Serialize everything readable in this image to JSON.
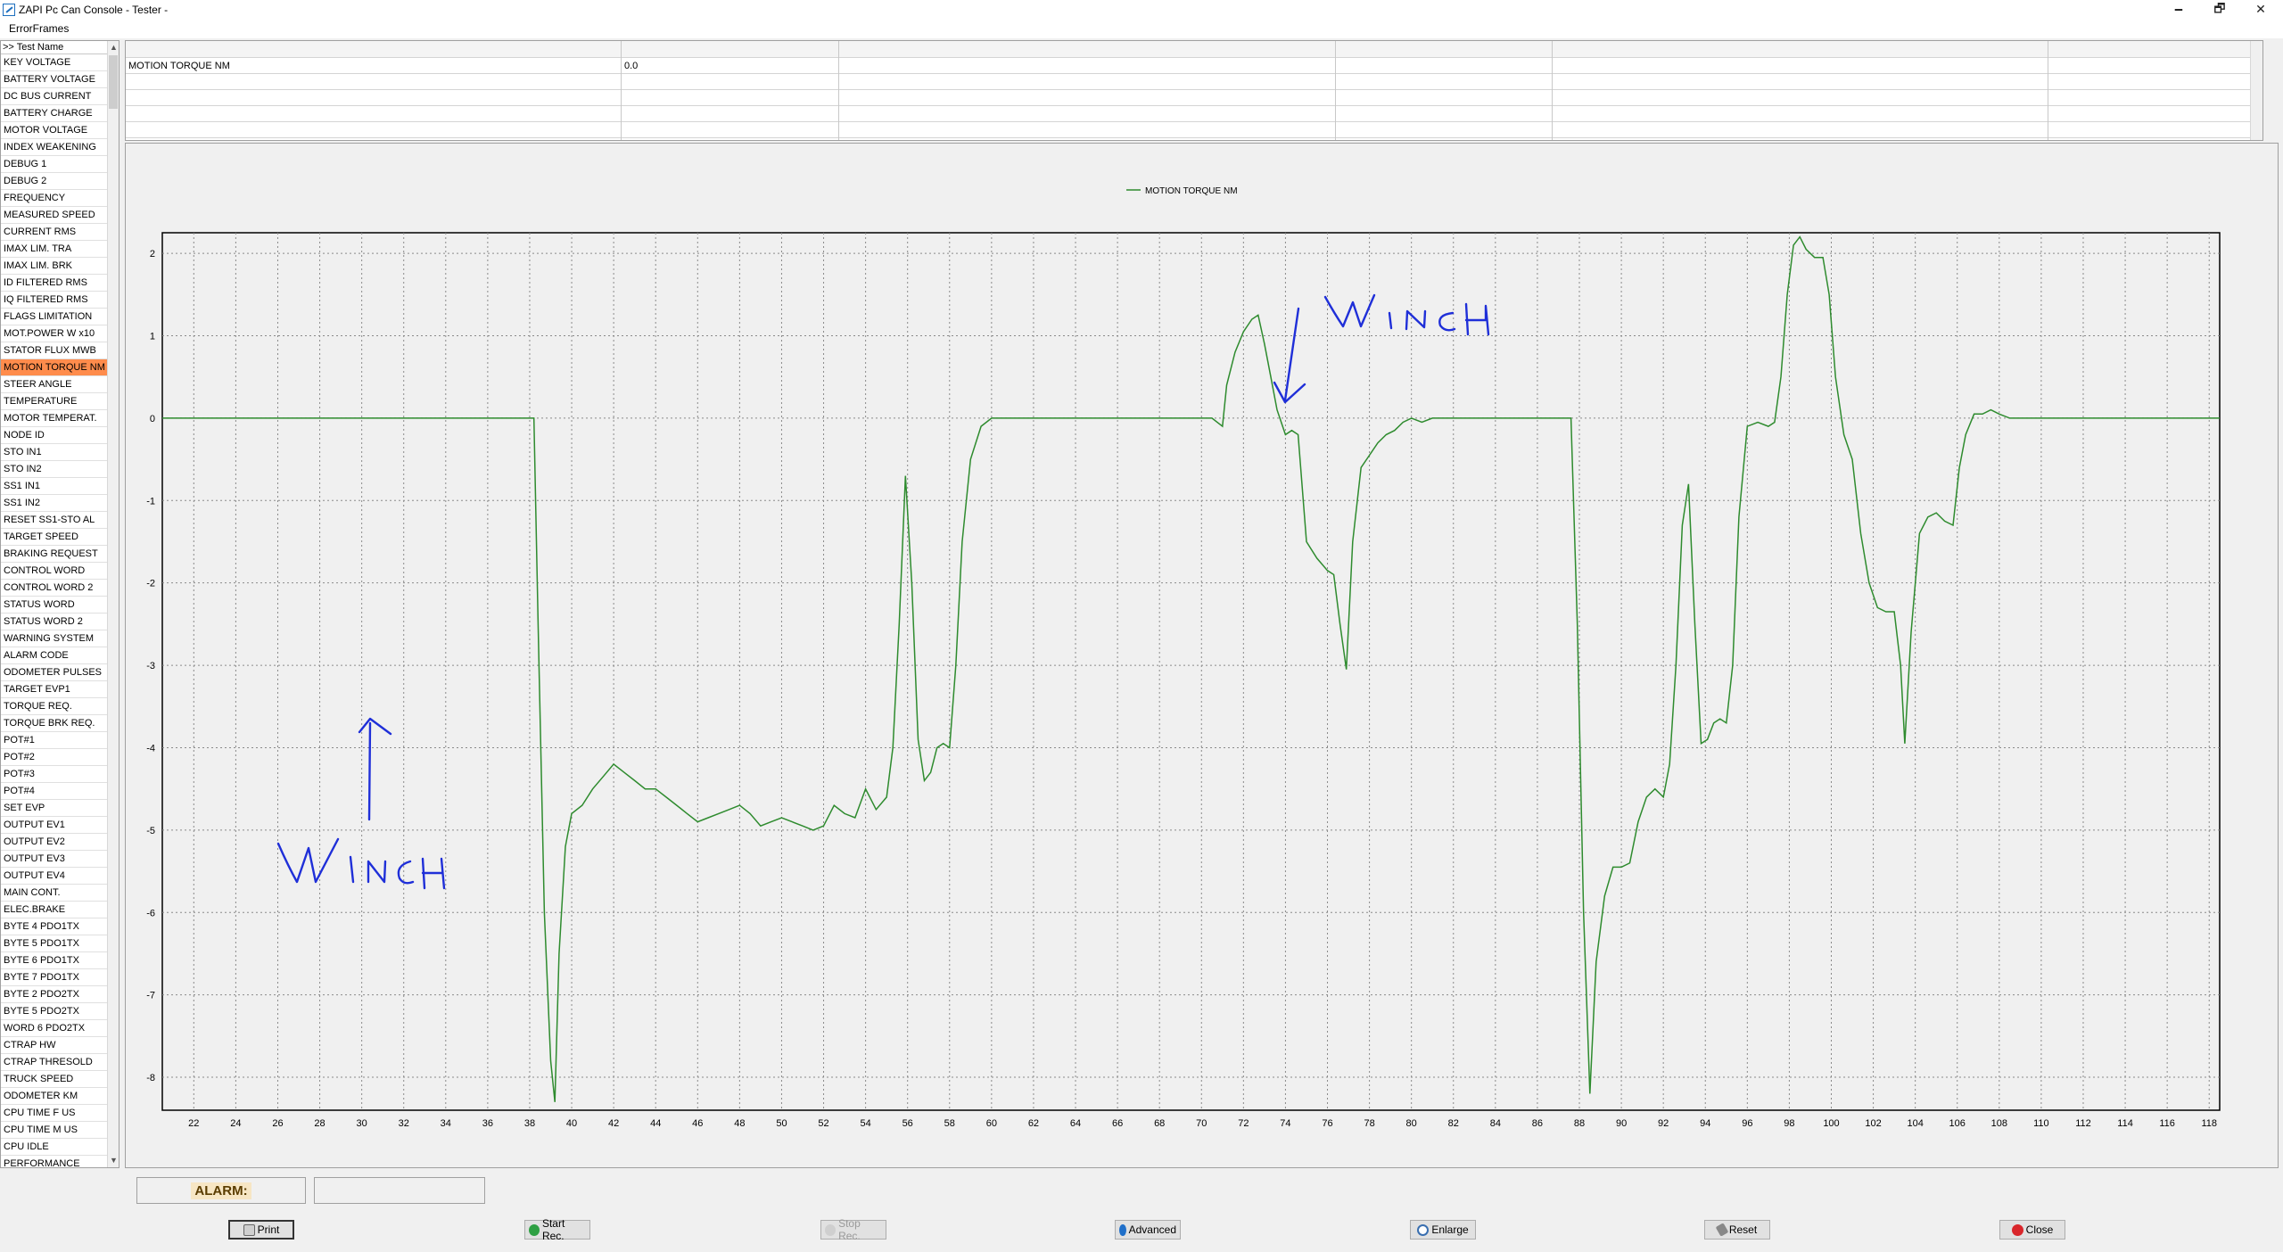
{
  "window": {
    "title": "ZAPI Pc Can Console - Tester -",
    "minimize": "🗕",
    "maximize": "🗗",
    "close": "✕"
  },
  "menu": [
    "ErrorFrames"
  ],
  "signal_list": {
    "header": ">> Test Name",
    "items": [
      "KEY VOLTAGE",
      "BATTERY  VOLTAGE",
      "DC BUS CURRENT",
      "BATTERY CHARGE",
      "MOTOR VOLTAGE",
      "INDEX WEAKENING",
      "DEBUG 1",
      "DEBUG 2",
      "FREQUENCY",
      "MEASURED SPEED",
      "CURRENT RMS",
      "IMAX LIM. TRA",
      "IMAX LIM. BRK",
      "ID FILTERED RMS",
      "IQ FILTERED RMS",
      "FLAGS LIMITATION",
      "MOT.POWER W x10",
      "STATOR FLUX  MWB",
      "MOTION TORQUE NM",
      "STEER ANGLE",
      "TEMPERATURE",
      "MOTOR TEMPERAT.",
      "NODE ID",
      "STO IN1",
      "STO IN2",
      "SS1 IN1",
      "SS1 IN2",
      "RESET SS1-STO AL",
      "TARGET SPEED",
      "BRAKING REQUEST",
      "CONTROL WORD",
      "CONTROL WORD 2",
      "STATUS WORD",
      "STATUS WORD 2",
      "WARNING SYSTEM",
      "ALARM CODE",
      "ODOMETER PULSES",
      "TARGET EVP1",
      "TORQUE REQ.",
      "TORQUE BRK REQ.",
      "POT#1",
      "POT#2",
      "POT#3",
      "POT#4",
      "SET    EVP",
      "OUTPUT EV1",
      "OUTPUT EV2",
      "OUTPUT EV3",
      "OUTPUT EV4",
      "MAIN CONT.",
      "ELEC.BRAKE",
      "BYTE 4 PDO1TX",
      "BYTE 5 PDO1TX",
      "BYTE 6 PDO1TX",
      "BYTE 7 PDO1TX",
      "BYTE 2 PDO2TX",
      "BYTE 5 PDO2TX",
      "WORD 6 PDO2TX",
      "CTRAP HW",
      "CTRAP THRESOLD",
      "TRUCK SPEED",
      "ODOMETER    KM",
      "CPU TIME F  US",
      "CPU TIME M  US",
      "CPU IDLE",
      "PERFORMANCE"
    ],
    "selected_index": 18,
    "scroll_up": "▲",
    "scroll_down": "▼"
  },
  "value_grid": {
    "rows": [
      {
        "name": "MOTION TORQUE NM",
        "value": "0.0"
      }
    ]
  },
  "chart_data": {
    "type": "line",
    "title": "",
    "legend_placement": "top-center",
    "xlim": [
      20.5,
      118.5
    ],
    "ylim": [
      -8.4,
      2.25
    ],
    "x_ticks": [
      22,
      24,
      26,
      28,
      30,
      32,
      34,
      36,
      38,
      40,
      42,
      44,
      46,
      48,
      50,
      52,
      54,
      56,
      58,
      60,
      62,
      64,
      66,
      68,
      70,
      72,
      74,
      76,
      78,
      80,
      82,
      84,
      86,
      88,
      90,
      92,
      94,
      96,
      98,
      100,
      102,
      104,
      106,
      108,
      110,
      112,
      114,
      116,
      118
    ],
    "y_ticks": [
      2,
      1,
      0,
      -1,
      -2,
      -3,
      -4,
      -5,
      -6,
      -7,
      -8
    ],
    "grid": true,
    "series": [
      {
        "name": "MOTION TORQUE NM",
        "color": "#2e8b2e",
        "points": [
          [
            20.5,
            0
          ],
          [
            38.2,
            0
          ],
          [
            38.4,
            -2.5
          ],
          [
            38.7,
            -6
          ],
          [
            39.0,
            -7.8
          ],
          [
            39.2,
            -8.3
          ],
          [
            39.4,
            -6.5
          ],
          [
            39.7,
            -5.2
          ],
          [
            40.0,
            -4.8
          ],
          [
            40.5,
            -4.7
          ],
          [
            41.0,
            -4.5
          ],
          [
            41.5,
            -4.35
          ],
          [
            42.0,
            -4.2
          ],
          [
            42.5,
            -4.3
          ],
          [
            43.0,
            -4.4
          ],
          [
            43.5,
            -4.5
          ],
          [
            44.0,
            -4.5
          ],
          [
            44.5,
            -4.6
          ],
          [
            45.0,
            -4.7
          ],
          [
            45.5,
            -4.8
          ],
          [
            46.0,
            -4.9
          ],
          [
            46.5,
            -4.85
          ],
          [
            47.0,
            -4.8
          ],
          [
            47.5,
            -4.75
          ],
          [
            48.0,
            -4.7
          ],
          [
            48.5,
            -4.8
          ],
          [
            49.0,
            -4.95
          ],
          [
            49.5,
            -4.9
          ],
          [
            50.0,
            -4.85
          ],
          [
            50.5,
            -4.9
          ],
          [
            51.0,
            -4.95
          ],
          [
            51.5,
            -5.0
          ],
          [
            52.0,
            -4.95
          ],
          [
            52.5,
            -4.7
          ],
          [
            53.0,
            -4.8
          ],
          [
            53.5,
            -4.85
          ],
          [
            54.0,
            -4.5
          ],
          [
            54.5,
            -4.75
          ],
          [
            55.0,
            -4.6
          ],
          [
            55.3,
            -4.0
          ],
          [
            55.6,
            -2.5
          ],
          [
            55.9,
            -0.7
          ],
          [
            56.2,
            -2.0
          ],
          [
            56.5,
            -3.9
          ],
          [
            56.8,
            -4.4
          ],
          [
            57.1,
            -4.3
          ],
          [
            57.4,
            -4.0
          ],
          [
            57.7,
            -3.95
          ],
          [
            58.0,
            -4.0
          ],
          [
            58.3,
            -3.0
          ],
          [
            58.6,
            -1.5
          ],
          [
            59.0,
            -0.5
          ],
          [
            59.5,
            -0.1
          ],
          [
            60.0,
            0
          ],
          [
            70.5,
            0
          ],
          [
            71.0,
            -0.1
          ],
          [
            71.2,
            0.4
          ],
          [
            71.6,
            0.8
          ],
          [
            72.0,
            1.05
          ],
          [
            72.4,
            1.2
          ],
          [
            72.7,
            1.25
          ],
          [
            73.0,
            0.9
          ],
          [
            73.3,
            0.5
          ],
          [
            73.6,
            0.1
          ],
          [
            74.0,
            -0.2
          ],
          [
            74.3,
            -0.15
          ],
          [
            74.6,
            -0.2
          ],
          [
            75.0,
            -1.5
          ],
          [
            75.5,
            -1.7
          ],
          [
            76.0,
            -1.85
          ],
          [
            76.3,
            -1.9
          ],
          [
            76.6,
            -2.5
          ],
          [
            76.9,
            -3.05
          ],
          [
            77.2,
            -1.5
          ],
          [
            77.6,
            -0.6
          ],
          [
            78.0,
            -0.45
          ],
          [
            78.4,
            -0.3
          ],
          [
            78.8,
            -0.2
          ],
          [
            79.2,
            -0.15
          ],
          [
            79.6,
            -0.05
          ],
          [
            80.0,
            0
          ],
          [
            80.5,
            -0.05
          ],
          [
            81.0,
            0
          ],
          [
            87.6,
            0
          ],
          [
            87.9,
            -2.5
          ],
          [
            88.2,
            -6
          ],
          [
            88.5,
            -8.2
          ],
          [
            88.8,
            -6.6
          ],
          [
            89.2,
            -5.8
          ],
          [
            89.6,
            -5.45
          ],
          [
            90.0,
            -5.45
          ],
          [
            90.4,
            -5.4
          ],
          [
            90.8,
            -4.9
          ],
          [
            91.2,
            -4.6
          ],
          [
            91.6,
            -4.5
          ],
          [
            92.0,
            -4.6
          ],
          [
            92.3,
            -4.2
          ],
          [
            92.6,
            -3.0
          ],
          [
            92.9,
            -1.3
          ],
          [
            93.2,
            -0.8
          ],
          [
            93.5,
            -2.5
          ],
          [
            93.8,
            -3.95
          ],
          [
            94.1,
            -3.9
          ],
          [
            94.4,
            -3.7
          ],
          [
            94.7,
            -3.65
          ],
          [
            95.0,
            -3.7
          ],
          [
            95.3,
            -3.0
          ],
          [
            95.6,
            -1.2
          ],
          [
            96.0,
            -0.1
          ],
          [
            96.5,
            -0.05
          ],
          [
            97.0,
            -0.1
          ],
          [
            97.3,
            -0.05
          ],
          [
            97.6,
            0.5
          ],
          [
            97.9,
            1.5
          ],
          [
            98.2,
            2.1
          ],
          [
            98.5,
            2.2
          ],
          [
            98.8,
            2.05
          ],
          [
            99.2,
            1.95
          ],
          [
            99.6,
            1.95
          ],
          [
            99.9,
            1.5
          ],
          [
            100.2,
            0.5
          ],
          [
            100.6,
            -0.2
          ],
          [
            101.0,
            -0.5
          ],
          [
            101.4,
            -1.4
          ],
          [
            101.8,
            -2.0
          ],
          [
            102.2,
            -2.3
          ],
          [
            102.6,
            -2.35
          ],
          [
            103.0,
            -2.35
          ],
          [
            103.3,
            -3.0
          ],
          [
            103.5,
            -3.95
          ],
          [
            103.8,
            -2.6
          ],
          [
            104.2,
            -1.4
          ],
          [
            104.6,
            -1.2
          ],
          [
            105.0,
            -1.15
          ],
          [
            105.4,
            -1.25
          ],
          [
            105.8,
            -1.3
          ],
          [
            106.1,
            -0.6
          ],
          [
            106.4,
            -0.2
          ],
          [
            106.8,
            0.05
          ],
          [
            107.2,
            0.05
          ],
          [
            107.6,
            0.1
          ],
          [
            108.0,
            0.05
          ],
          [
            108.5,
            0
          ],
          [
            118.5,
            0
          ]
        ]
      }
    ],
    "annotations": [
      {
        "text": "WINCH",
        "kind": "handwritten",
        "color": "#1f2fd8"
      },
      {
        "text": "WINCH",
        "kind": "handwritten",
        "color": "#1f2fd8"
      }
    ]
  },
  "status": {
    "alarm_label": "ALARM:",
    "alarm_value": ""
  },
  "buttons": [
    {
      "label": "Print",
      "icon": "printer-icon",
      "state": "default"
    },
    {
      "label": "Start Rec.",
      "icon": "start-rec-icon",
      "state": "enabled"
    },
    {
      "label": "Stop Rec.",
      "icon": "stop-rec-icon",
      "state": "disabled"
    },
    {
      "label": "Advanced",
      "icon": "advanced-icon",
      "state": "enabled"
    },
    {
      "label": "Enlarge",
      "icon": "magnifier-icon",
      "state": "enabled"
    },
    {
      "label": "Reset",
      "icon": "eraser-icon",
      "state": "enabled"
    },
    {
      "label": "Close",
      "icon": "close-icon",
      "state": "enabled"
    }
  ]
}
